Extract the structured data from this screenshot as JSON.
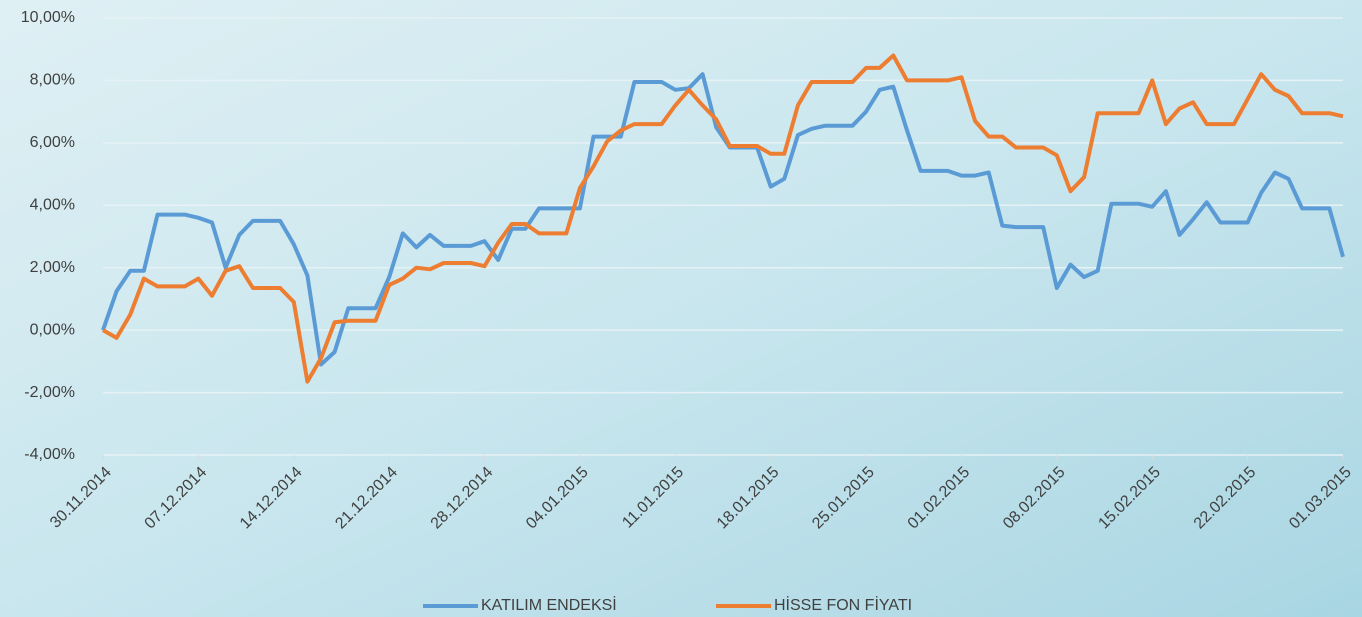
{
  "chart_data": {
    "type": "line",
    "categories": [
      "30.11.2014",
      null,
      null,
      null,
      null,
      null,
      null,
      "07.12.2014",
      null,
      null,
      null,
      null,
      null,
      null,
      "14.12.2014",
      null,
      null,
      null,
      null,
      null,
      null,
      "21.12.2014",
      null,
      null,
      null,
      null,
      null,
      null,
      "28.12.2014",
      null,
      null,
      null,
      null,
      null,
      null,
      "04.01.2015",
      null,
      null,
      null,
      null,
      null,
      null,
      "11.01.2015",
      null,
      null,
      null,
      null,
      null,
      null,
      "18.01.2015",
      null,
      null,
      null,
      null,
      null,
      null,
      "25.01.2015",
      null,
      null,
      null,
      null,
      null,
      null,
      "01.02.2015",
      null,
      null,
      null,
      null,
      null,
      null,
      "08.02.2015",
      null,
      null,
      null,
      null,
      null,
      null,
      "15.02.2015",
      null,
      null,
      null,
      null,
      null,
      null,
      "22.02.2015",
      null,
      null,
      null,
      null,
      null,
      null,
      "01.03.2015"
    ],
    "series": [
      {
        "name": "KATILIM ENDEKSİ",
        "color": "#5b9bd5",
        "values": [
          0,
          1.25,
          1.9,
          1.9,
          3.7,
          3.7,
          3.7,
          3.6,
          3.45,
          2.0,
          3.05,
          3.5,
          3.5,
          3.5,
          2.75,
          1.75,
          -1.1,
          -0.7,
          0.7,
          0.7,
          0.7,
          1.7,
          3.1,
          2.65,
          3.05,
          2.7,
          2.7,
          2.7,
          2.85,
          2.25,
          3.25,
          3.25,
          3.9,
          3.9,
          3.9,
          3.9,
          6.2,
          6.2,
          6.2,
          7.95,
          7.95,
          7.95,
          7.7,
          7.75,
          8.2,
          6.5,
          5.85,
          5.85,
          5.85,
          4.6,
          4.85,
          6.25,
          6.45,
          6.55,
          6.55,
          6.55,
          7.0,
          7.7,
          7.8,
          6.4,
          5.1,
          5.1,
          5.1,
          4.95,
          4.95,
          5.05,
          3.35,
          3.3,
          3.3,
          3.3,
          1.35,
          2.1,
          1.7,
          1.9,
          4.05,
          4.05,
          4.05,
          3.95,
          4.45,
          3.05,
          3.55,
          4.1,
          3.45,
          3.45,
          3.45,
          4.4,
          5.05,
          4.85,
          3.9,
          3.9,
          3.9,
          2.35
        ]
      },
      {
        "name": "HİSSE FON FİYATI",
        "color": "#ed7d31",
        "values": [
          0,
          -0.25,
          0.5,
          1.65,
          1.4,
          1.4,
          1.4,
          1.65,
          1.1,
          1.9,
          2.05,
          1.35,
          1.35,
          1.35,
          0.9,
          -1.65,
          -0.9,
          0.25,
          0.3,
          0.3,
          0.3,
          1.45,
          1.65,
          2.0,
          1.95,
          2.15,
          2.15,
          2.15,
          2.05,
          2.8,
          3.4,
          3.4,
          3.1,
          3.1,
          3.1,
          4.55,
          5.25,
          6.05,
          6.4,
          6.6,
          6.6,
          6.6,
          7.2,
          7.7,
          7.2,
          6.75,
          5.9,
          5.9,
          5.9,
          5.65,
          5.65,
          7.2,
          7.95,
          7.95,
          7.95,
          7.95,
          8.4,
          8.4,
          8.8,
          8.0,
          8.0,
          8.0,
          8.0,
          8.1,
          6.7,
          6.2,
          6.2,
          5.85,
          5.85,
          5.85,
          5.6,
          4.45,
          4.9,
          6.95,
          6.95,
          6.95,
          6.95,
          8.0,
          6.6,
          7.1,
          7.3,
          6.6,
          6.6,
          6.6,
          7.4,
          8.2,
          7.7,
          7.5,
          6.95,
          6.95,
          6.95,
          6.85
        ]
      }
    ],
    "ylim": [
      -4,
      10
    ],
    "yticks": [
      {
        "value": -4,
        "label": "-4,00%"
      },
      {
        "value": -2,
        "label": "-2,00%"
      },
      {
        "value": 0,
        "label": "0,00%"
      },
      {
        "value": 2,
        "label": "2,00%"
      },
      {
        "value": 4,
        "label": "4,00%"
      },
      {
        "value": 6,
        "label": "6,00%"
      },
      {
        "value": 8,
        "label": "8,00%"
      },
      {
        "value": 10,
        "label": "10,00%"
      }
    ],
    "grid": true,
    "legend": "bottom"
  }
}
